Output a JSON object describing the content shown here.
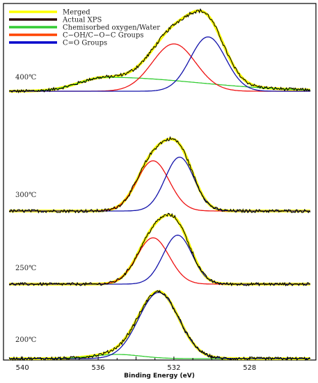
{
  "chart_data": {
    "type": "line",
    "title": "",
    "xlabel": "Binding Energy (eV)",
    "ylabel": "",
    "xlim": [
      541,
      524.5
    ],
    "x_reversed": true,
    "x_ticks": [
      540,
      536,
      532,
      528
    ],
    "legend": {
      "placement": "top-left",
      "entries": [
        {
          "label": "Merged",
          "color": "#ffff00"
        },
        {
          "label": "Actual XPS",
          "color": "#2b0a0a"
        },
        {
          "label": "Chemisorbed oxygen/Water",
          "color": "#33cc33"
        },
        {
          "label": "C−OH/C−O−C Groups",
          "color": "#ff4400"
        },
        {
          "label": "C=O Groups",
          "color": "#0000cc"
        }
      ]
    },
    "components": {
      "chemisorbed": {
        "color": "#33cc33"
      },
      "c_oh": {
        "color": "#ee1111"
      },
      "c_o": {
        "color": "#1111aa"
      },
      "merged": {
        "color": "#ffff00"
      },
      "actual": {
        "color": "#000000"
      }
    },
    "panels": [
      {
        "label": "400℃",
        "peaks": [
          {
            "component": "chemisorbed",
            "center": 535.6,
            "fwhm": 3.3,
            "height": 0.2,
            "asym_right": 3.5
          },
          {
            "component": "c_oh",
            "center": 532.0,
            "fwhm": 2.7,
            "height": 0.68
          },
          {
            "component": "c_o",
            "center": 530.2,
            "fwhm": 2.2,
            "height": 0.78
          }
        ]
      },
      {
        "label": "300℃",
        "peaks": [
          {
            "component": "c_oh",
            "center": 533.1,
            "fwhm": 2.0,
            "height": 0.7
          },
          {
            "component": "c_o",
            "center": 531.7,
            "fwhm": 1.8,
            "height": 0.75
          }
        ]
      },
      {
        "label": "250℃",
        "peaks": [
          {
            "component": "c_oh",
            "center": 533.1,
            "fwhm": 2.0,
            "height": 0.7
          },
          {
            "component": "c_o",
            "center": 531.8,
            "fwhm": 1.8,
            "height": 0.74
          }
        ]
      },
      {
        "label": "200℃",
        "peaks": [
          {
            "component": "chemisorbed",
            "center": 535.0,
            "fwhm": 3.0,
            "height": 0.06
          },
          {
            "component": "c_o",
            "center": 532.8,
            "fwhm": 2.5,
            "height": 0.95
          }
        ]
      }
    ]
  }
}
